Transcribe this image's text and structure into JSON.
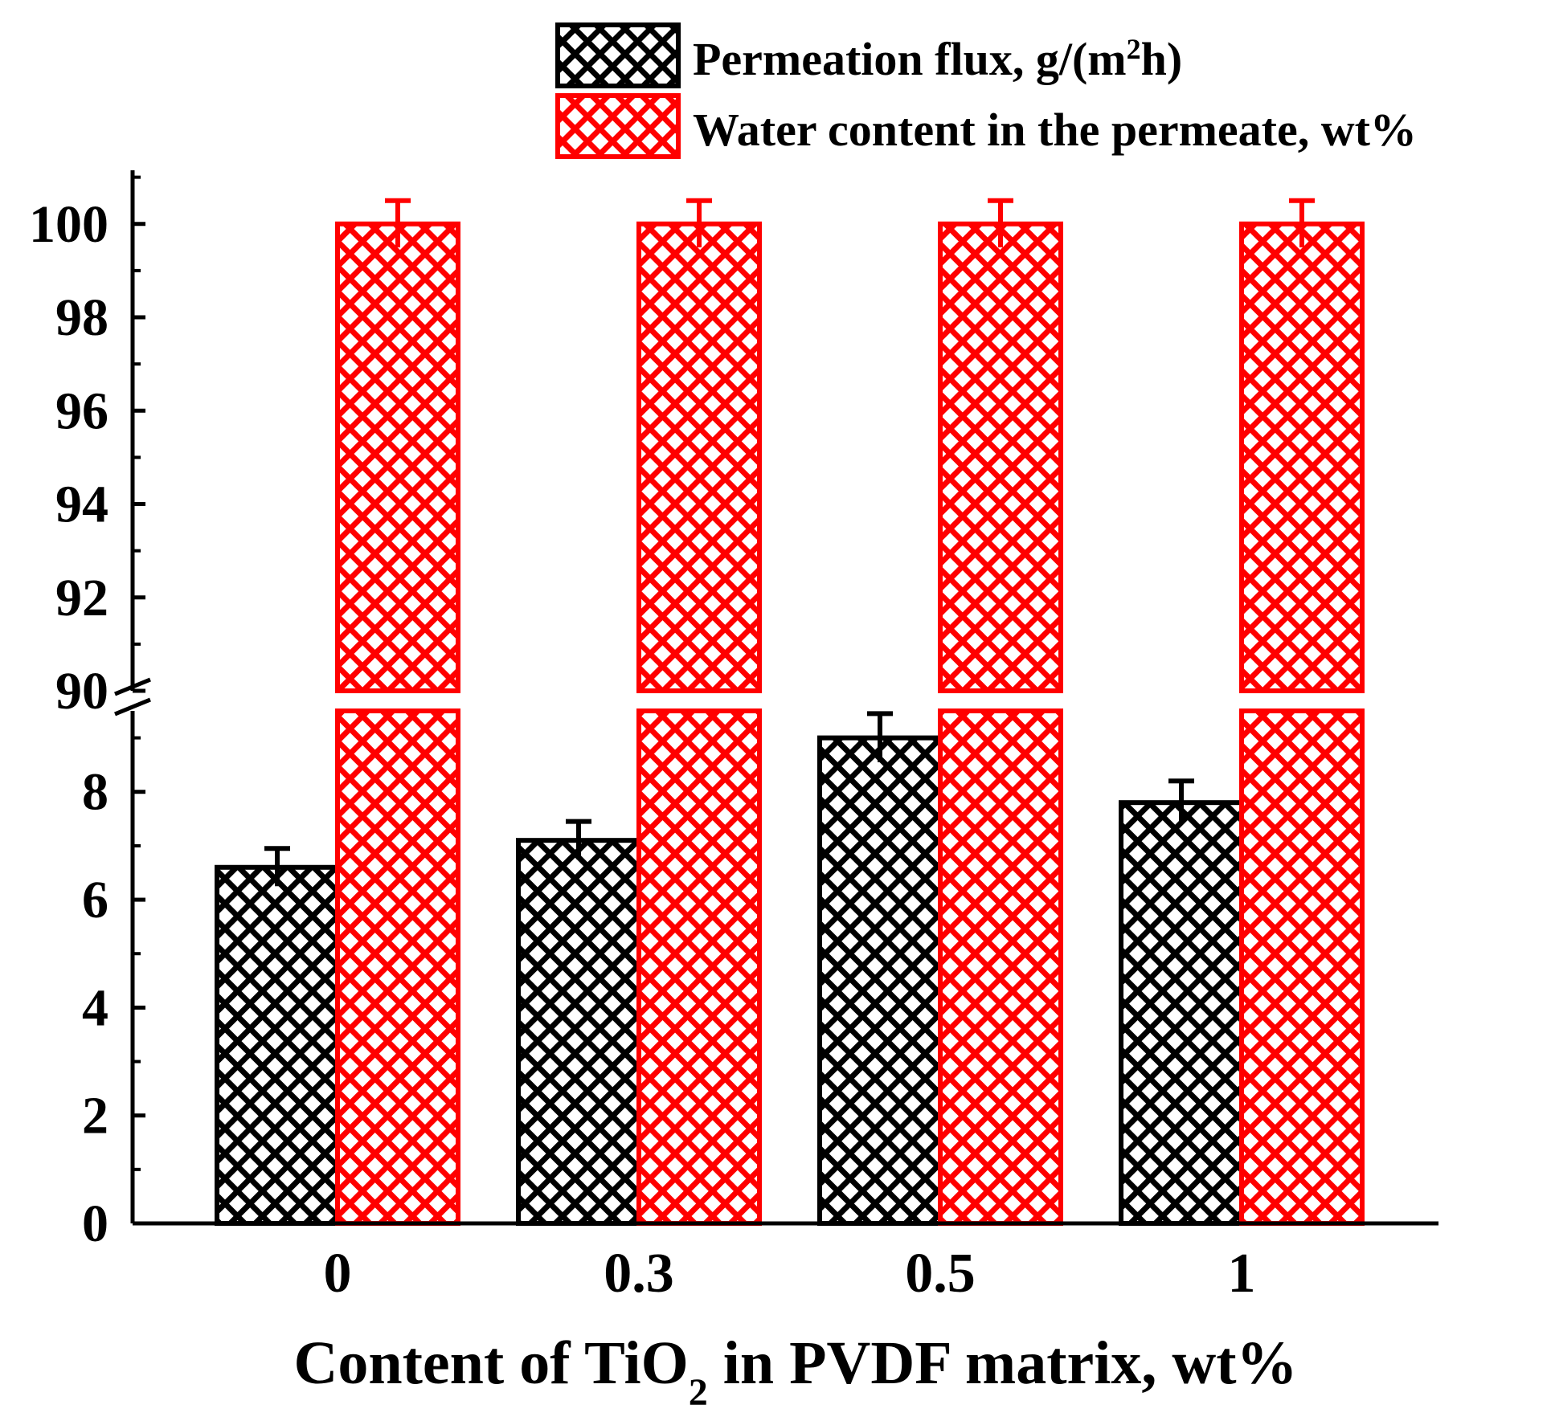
{
  "chart_data": {
    "type": "bar",
    "title": "",
    "xlabel": "Content of TiO",
    "xlabel_sub": "2",
    "xlabel_suffix": " in PVDF matrix, wt%",
    "ylabel": "",
    "categories": [
      "0",
      "0.3",
      "0.5",
      "1"
    ],
    "series": [
      {
        "name": "Permeation flux, g/(m",
        "name_sup": "2",
        "name_suffix": "h)",
        "color": "#000000",
        "pattern": "cross-hatch",
        "values": [
          6.6,
          7.1,
          9.0,
          7.8
        ],
        "errors": [
          0.35,
          0.35,
          0.45,
          0.4
        ]
      },
      {
        "name": "Water content in the permeate, wt%",
        "color": "#ff0000",
        "pattern": "cross-hatch",
        "values": [
          100,
          100,
          100,
          100
        ],
        "errors": [
          0.5,
          0.5,
          0.5,
          0.5
        ]
      }
    ],
    "y_axis_break": true,
    "lower_segment": {
      "ylim": [
        0,
        9.5
      ],
      "ticks": [
        "0",
        "2",
        "4",
        "6",
        "8"
      ]
    },
    "upper_segment": {
      "ylim": [
        90,
        101.2
      ],
      "ticks": [
        "90",
        "92",
        "94",
        "96",
        "98",
        "100"
      ]
    },
    "legend_position": "top-right",
    "grid": false
  }
}
